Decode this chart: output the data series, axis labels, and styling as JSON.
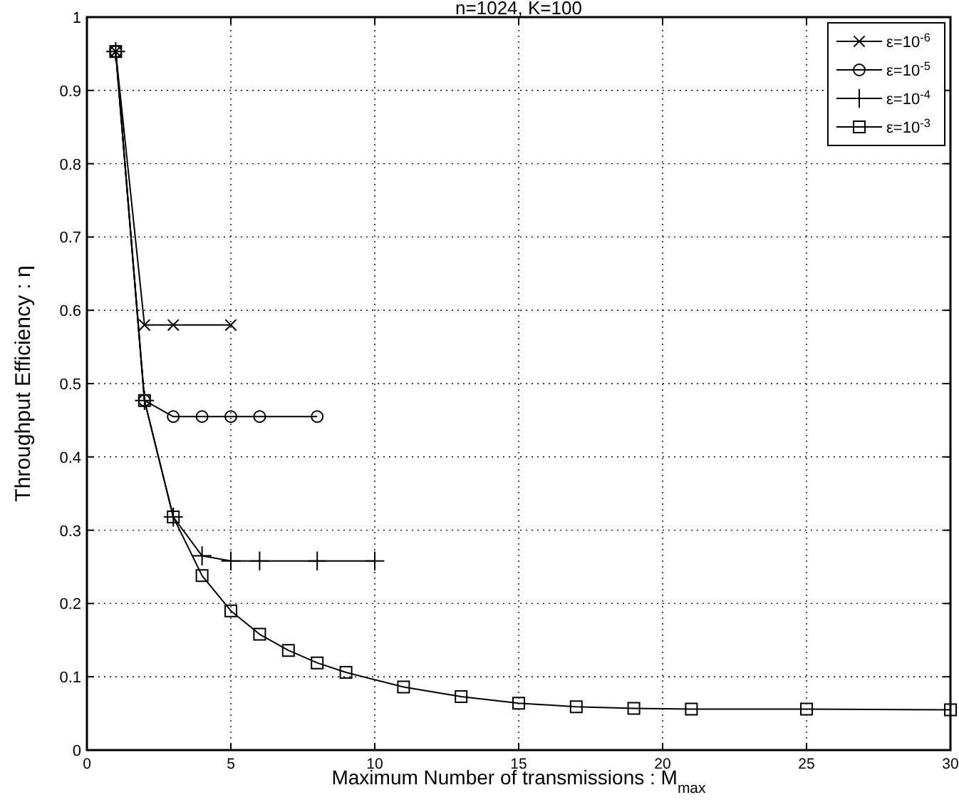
{
  "chart_data": {
    "type": "line",
    "title": "n=1024, K=100",
    "xlabel": "Maximum Number of transmissions : M$_{max}$",
    "ylabel": "Throughput Efficiency : η",
    "xlim": [
      0,
      30
    ],
    "xticks": [
      0,
      5,
      10,
      15,
      20,
      25,
      30
    ],
    "ylim": [
      0,
      1
    ],
    "yticks": [
      0,
      0.1,
      0.2,
      0.3,
      0.4,
      0.5,
      0.6,
      0.7,
      0.8,
      0.9,
      1
    ],
    "grid": true,
    "legend": "top right",
    "line_style": "solid",
    "series": [
      {
        "name": "ε=10$^{-6}$",
        "color": "#000000",
        "marker": "cross",
        "x": [
          1,
          2,
          3,
          5
        ],
        "values": [
          0.953,
          0.58,
          0.58,
          0.58
        ]
      },
      {
        "name": "ε=10$^{-5}$",
        "color": "#000000",
        "marker": "circle",
        "x": [
          1,
          2,
          3,
          4,
          5,
          6,
          8
        ],
        "values": [
          0.953,
          0.477,
          0.455,
          0.455,
          0.455,
          0.455,
          0.455
        ]
      },
      {
        "name": "ε=10$^{-4}$",
        "color": "#000000",
        "marker": "plus",
        "x": [
          1,
          2,
          3,
          4,
          5,
          6,
          8,
          10
        ],
        "values": [
          0.953,
          0.477,
          0.318,
          0.265,
          0.258,
          0.258,
          0.258,
          0.258
        ]
      },
      {
        "name": "ε=10$^{-3}$",
        "color": "#000000",
        "marker": "square",
        "x": [
          1,
          2,
          3,
          4,
          5,
          6,
          7,
          8,
          9,
          11,
          13,
          15,
          17,
          19,
          21,
          25,
          30
        ],
        "values": [
          0.953,
          0.477,
          0.318,
          0.238,
          0.19,
          0.158,
          0.136,
          0.119,
          0.106,
          0.086,
          0.073,
          0.064,
          0.059,
          0.057,
          0.056,
          0.056,
          0.055
        ]
      }
    ]
  }
}
